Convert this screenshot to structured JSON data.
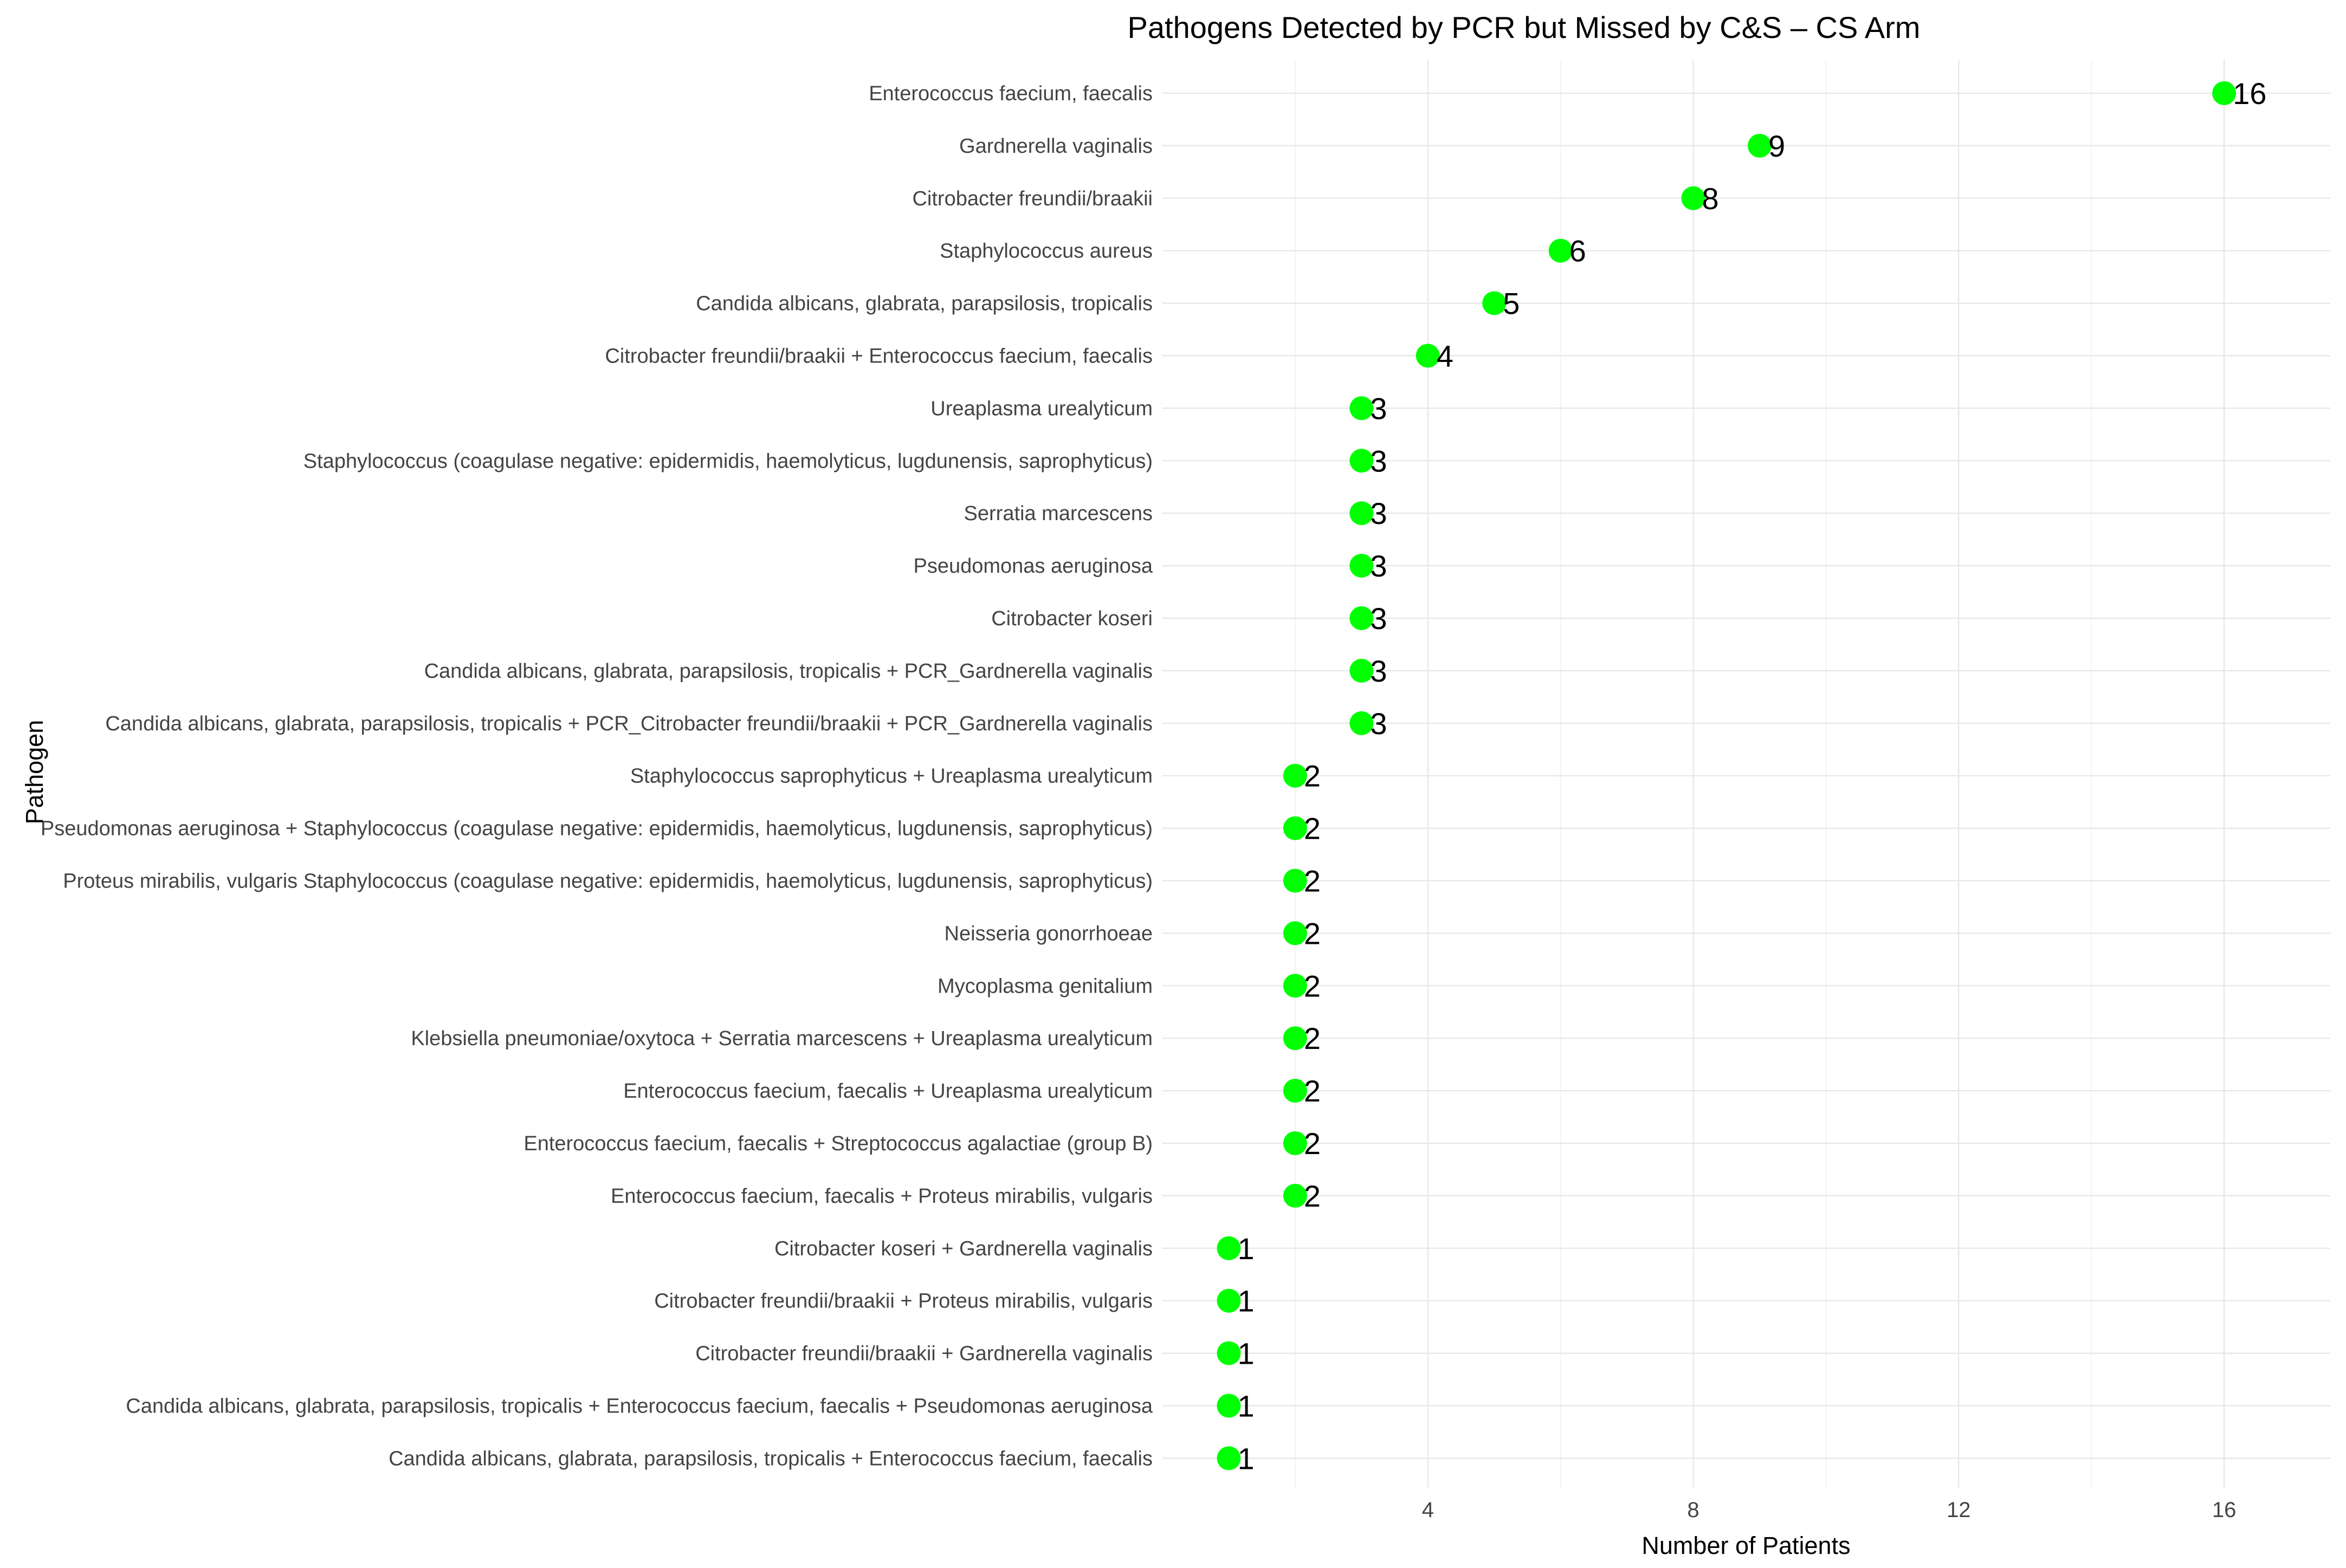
{
  "chart_data": {
    "type": "scatter",
    "orientation": "horizontal",
    "title": "Pathogens Detected by PCR but Missed by C&S – CS Arm",
    "xlabel": "Number of Patients",
    "ylabel": "Pathogen",
    "xlim": [
      0,
      17.6
    ],
    "xticks": [
      4,
      8,
      12,
      16
    ],
    "grid": true,
    "point_color": "#00ff00",
    "categories": [
      "Enterococcus faecium, faecalis",
      "Gardnerella vaginalis",
      "Citrobacter freundii/braakii",
      "Staphylococcus aureus",
      "Candida albicans, glabrata, parapsilosis, tropicalis",
      "Citrobacter freundii/braakii + Enterococcus faecium, faecalis",
      "Ureaplasma urealyticum",
      "Staphylococcus (coagulase negative: epidermidis, haemolyticus, lugdunensis, saprophyticus)",
      "Serratia marcescens",
      "Pseudomonas aeruginosa",
      "Citrobacter koseri",
      "Candida albicans, glabrata, parapsilosis, tropicalis + PCR_Gardnerella vaginalis",
      "Candida albicans, glabrata, parapsilosis, tropicalis + PCR_Citrobacter freundii/braakii + PCR_Gardnerella vaginalis",
      "Staphylococcus saprophyticus + Ureaplasma urealyticum",
      "Pseudomonas aeruginosa + Staphylococcus (coagulase negative: epidermidis, haemolyticus, lugdunensis, saprophyticus)",
      "Proteus mirabilis, vulgaris Staphylococcus (coagulase negative: epidermidis, haemolyticus, lugdunensis, saprophyticus)",
      "Neisseria gonorrhoeae",
      "Mycoplasma genitalium",
      "Klebsiella pneumoniae/oxytoca + Serratia marcescens + Ureaplasma urealyticum",
      "Enterococcus faecium, faecalis + Ureaplasma urealyticum",
      "Enterococcus faecium, faecalis + Streptococcus agalactiae (group B)",
      "Enterococcus faecium, faecalis + Proteus mirabilis, vulgaris",
      "Citrobacter koseri + Gardnerella vaginalis",
      "Citrobacter freundii/braakii + Proteus mirabilis, vulgaris",
      "Citrobacter freundii/braakii + Gardnerella vaginalis",
      "Candida albicans, glabrata, parapsilosis, tropicalis + Enterococcus faecium, faecalis + Pseudomonas aeruginosa",
      "Candida albicans, glabrata, parapsilosis, tropicalis + Enterococcus faecium, faecalis"
    ],
    "values": [
      16,
      9,
      8,
      6,
      5,
      4,
      3,
      3,
      3,
      3,
      3,
      3,
      3,
      2,
      2,
      2,
      2,
      2,
      2,
      2,
      2,
      2,
      1,
      1,
      1,
      1,
      1
    ],
    "data_labels": [
      "16",
      "9",
      "8",
      "6",
      "5",
      "4",
      "3",
      "3",
      "3",
      "3",
      "3",
      "3",
      "3",
      "2",
      "2",
      "2",
      "2",
      "2",
      "2",
      "2",
      "2",
      "2",
      "1",
      "1",
      "1",
      "1",
      "1"
    ]
  }
}
